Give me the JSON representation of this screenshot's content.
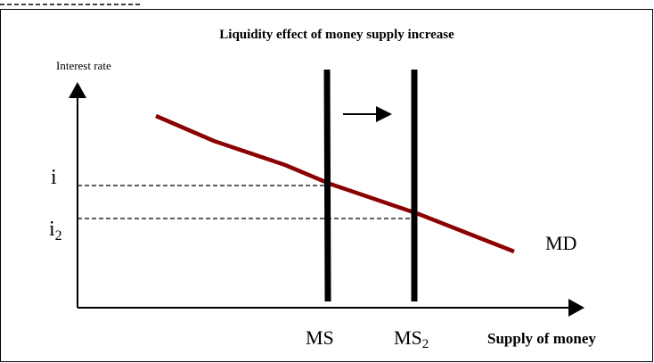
{
  "title": "Liquidity effect of money supply increase",
  "y_axis_label": "Interest rate",
  "x_axis_label": "Supply of money",
  "labels": {
    "i": "i",
    "i2": {
      "base": "i",
      "sub": "2"
    },
    "md": "MD",
    "ms": "MS",
    "ms2": {
      "base": "MS",
      "sub": "2"
    }
  }
}
